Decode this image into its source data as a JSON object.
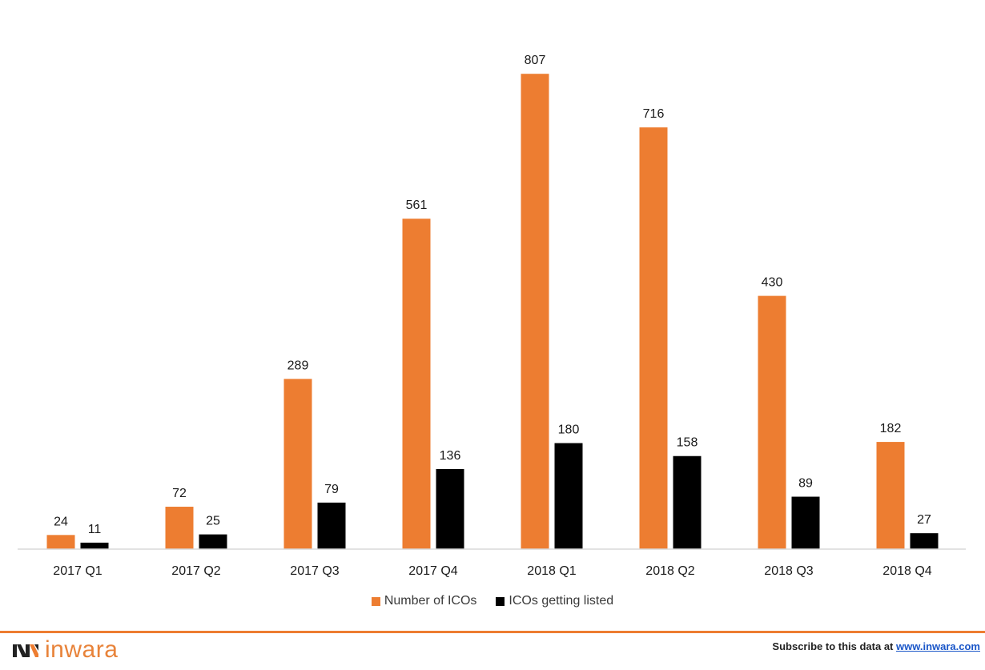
{
  "colors": {
    "number_of_icos": "#ED7D31",
    "icos_listed": "#000000",
    "axis": "#d9d9d9",
    "footer_line": "#ED7D31",
    "brand": "#ED7D31",
    "logo_text": "#E8833A"
  },
  "chart_data": {
    "type": "bar",
    "title": "",
    "xlabel": "",
    "ylabel": "",
    "categories": [
      "2017 Q1",
      "2017 Q2",
      "2017 Q3",
      "2017 Q4",
      "2018 Q1",
      "2018 Q2",
      "2018 Q3",
      "2018 Q4"
    ],
    "series": [
      {
        "name": "Number of ICOs",
        "values": [
          24,
          72,
          289,
          561,
          807,
          716,
          430,
          182
        ]
      },
      {
        "name": "ICOs getting listed",
        "values": [
          11,
          25,
          79,
          136,
          180,
          158,
          89,
          27
        ]
      }
    ],
    "ylim": [
      0,
      810
    ],
    "grid": false,
    "legend_position": "bottom",
    "data_labels": true
  },
  "footer": {
    "logo_text": "inwara",
    "subscribe_text": "Subscribe to this data at ",
    "subscribe_link": "www.inwara.com"
  }
}
